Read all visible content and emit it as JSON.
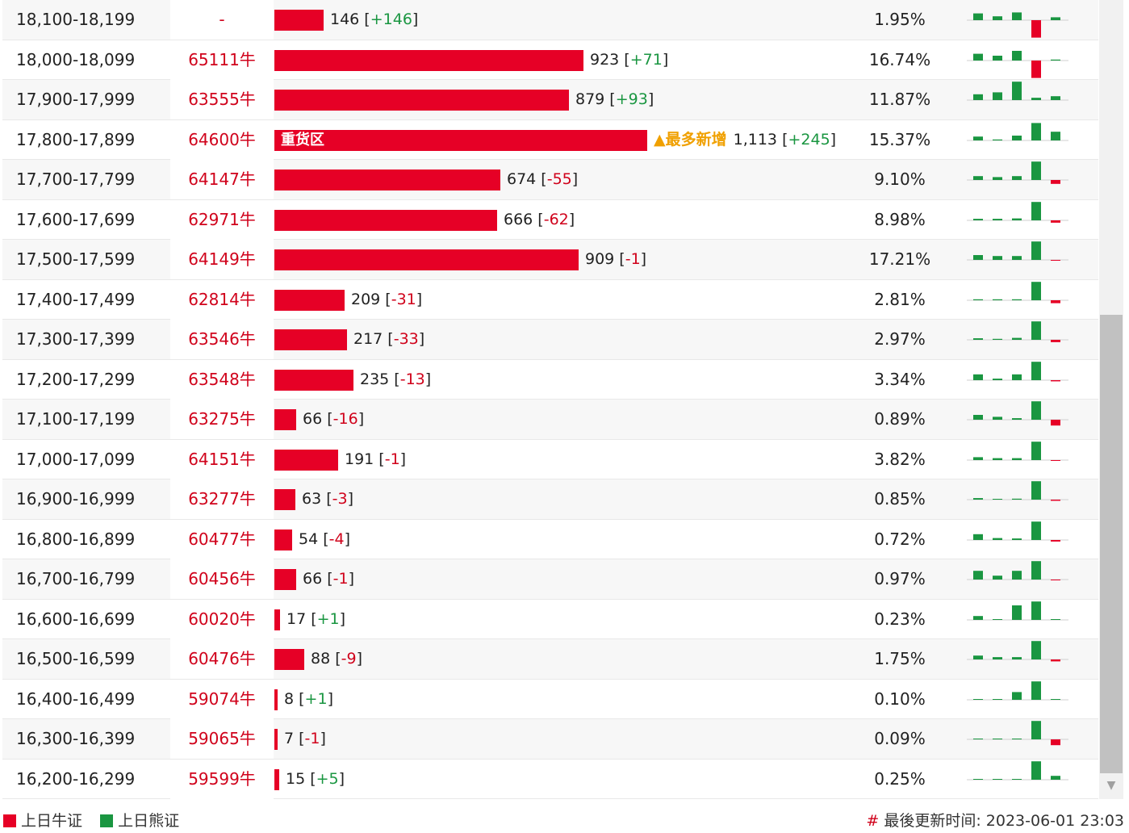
{
  "chart_data": {
    "type": "table",
    "columns": [
      "range",
      "strike_count",
      "bar",
      "percent",
      "sparkline"
    ],
    "rows": [
      {
        "range": "18,100-18,199",
        "strike": "-",
        "value": 146,
        "value_text": "146",
        "change": "+146",
        "percent": "1.95%",
        "bar_label": "",
        "tag": "",
        "spark": [
          {
            "g": 0.35
          },
          {
            "g": 0.2
          },
          {
            "g": 0.4
          },
          {
            "r": 0.9
          },
          {
            "g": 0.15
          }
        ]
      },
      {
        "range": "18,000-18,099",
        "strike": "65111牛",
        "value": 923,
        "value_text": "923",
        "change": "+71",
        "percent": "16.74%",
        "bar_label": "",
        "tag": "",
        "spark": [
          {
            "g": 0.35
          },
          {
            "g": 0.25
          },
          {
            "g": 0.5
          },
          {
            "r": 0.9
          },
          {
            "g": 0.05
          }
        ]
      },
      {
        "range": "17,900-17,999",
        "strike": "63555牛",
        "value": 879,
        "value_text": "879",
        "change": "+93",
        "percent": "11.87%",
        "bar_label": "",
        "tag": "",
        "spark": [
          {
            "g": 0.3
          },
          {
            "g": 0.4
          },
          {
            "g": 0.95
          },
          {
            "g": 0.12
          },
          {
            "g": 0.2
          }
        ]
      },
      {
        "range": "17,800-17,899",
        "strike": "64600牛",
        "value": 1113,
        "value_text": "1,113",
        "change": "+245",
        "percent": "15.37%",
        "bar_label": "重货区",
        "tag": "▲最多新增",
        "spark": [
          {
            "g": 0.2
          },
          {
            "g": 0.05
          },
          {
            "g": 0.25
          },
          {
            "g": 0.9
          },
          {
            "g": 0.45
          }
        ]
      },
      {
        "range": "17,700-17,799",
        "strike": "64147牛",
        "value": 674,
        "value_text": "674",
        "change": "-55",
        "percent": "9.10%",
        "bar_label": "",
        "tag": "",
        "spark": [
          {
            "g": 0.2
          },
          {
            "g": 0.15
          },
          {
            "g": 0.2
          },
          {
            "g": 0.95
          },
          {
            "r": 0.2
          }
        ]
      },
      {
        "range": "17,600-17,699",
        "strike": "62971牛",
        "value": 666,
        "value_text": "666",
        "change": "-62",
        "percent": "8.98%",
        "bar_label": "",
        "tag": "",
        "spark": [
          {
            "g": 0.08
          },
          {
            "g": 0.08
          },
          {
            "g": 0.1
          },
          {
            "g": 0.95
          },
          {
            "r": 0.12
          }
        ]
      },
      {
        "range": "17,500-17,599",
        "strike": "64149牛",
        "value": 909,
        "value_text": "909",
        "change": "-1",
        "percent": "17.21%",
        "bar_label": "",
        "tag": "",
        "spark": [
          {
            "g": 0.25
          },
          {
            "g": 0.2
          },
          {
            "g": 0.2
          },
          {
            "g": 0.95
          },
          {
            "r": 0.03
          }
        ]
      },
      {
        "range": "17,400-17,499",
        "strike": "62814牛",
        "value": 209,
        "value_text": "209",
        "change": "-31",
        "percent": "2.81%",
        "bar_label": "",
        "tag": "",
        "spark": [
          {
            "g": 0.05
          },
          {
            "g": 0.05
          },
          {
            "g": 0.05
          },
          {
            "g": 0.95
          },
          {
            "r": 0.15
          }
        ]
      },
      {
        "range": "17,300-17,399",
        "strike": "63546牛",
        "value": 217,
        "value_text": "217",
        "change": "-33",
        "percent": "2.97%",
        "bar_label": "",
        "tag": "",
        "spark": [
          {
            "g": 0.08
          },
          {
            "g": 0.05
          },
          {
            "g": 0.1
          },
          {
            "g": 0.95
          },
          {
            "r": 0.12
          }
        ]
      },
      {
        "range": "17,200-17,299",
        "strike": "63548牛",
        "value": 235,
        "value_text": "235",
        "change": "-13",
        "percent": "3.34%",
        "bar_label": "",
        "tag": "",
        "spark": [
          {
            "g": 0.3
          },
          {
            "g": 0.08
          },
          {
            "g": 0.3
          },
          {
            "g": 0.95
          },
          {
            "r": 0.06
          }
        ]
      },
      {
        "range": "17,100-17,199",
        "strike": "63275牛",
        "value": 66,
        "value_text": "66",
        "change": "-16",
        "percent": "0.89%",
        "bar_label": "",
        "tag": "",
        "spark": [
          {
            "g": 0.25
          },
          {
            "g": 0.15
          },
          {
            "g": 0.08
          },
          {
            "g": 0.95
          },
          {
            "r": 0.3
          }
        ]
      },
      {
        "range": "17,000-17,099",
        "strike": "64151牛",
        "value": 191,
        "value_text": "191",
        "change": "-1",
        "percent": "3.82%",
        "bar_label": "",
        "tag": "",
        "spark": [
          {
            "g": 0.15
          },
          {
            "g": 0.1
          },
          {
            "g": 0.1
          },
          {
            "g": 0.95
          },
          {
            "r": 0
          }
        ]
      },
      {
        "range": "16,900-16,999",
        "strike": "63277牛",
        "value": 63,
        "value_text": "63",
        "change": "-3",
        "percent": "0.85%",
        "bar_label": "",
        "tag": "",
        "spark": [
          {
            "g": 0.08
          },
          {
            "g": 0
          },
          {
            "g": 0.05
          },
          {
            "g": 0.95
          },
          {
            "r": 0.06
          }
        ]
      },
      {
        "range": "16,800-16,899",
        "strike": "60477牛",
        "value": 54,
        "value_text": "54",
        "change": "-4",
        "percent": "0.72%",
        "bar_label": "",
        "tag": "",
        "spark": [
          {
            "g": 0.3
          },
          {
            "g": 0.1
          },
          {
            "g": 0.08
          },
          {
            "g": 0.95
          },
          {
            "r": 0.08
          }
        ]
      },
      {
        "range": "16,700-16,799",
        "strike": "60456牛",
        "value": 66,
        "value_text": "66",
        "change": "-1",
        "percent": "0.97%",
        "bar_label": "",
        "tag": "",
        "spark": [
          {
            "g": 0.45
          },
          {
            "g": 0.2
          },
          {
            "g": 0.45
          },
          {
            "g": 0.95
          },
          {
            "r": 0
          }
        ]
      },
      {
        "range": "16,600-16,699",
        "strike": "60020牛",
        "value": 17,
        "value_text": "17",
        "change": "+1",
        "percent": "0.23%",
        "bar_label": "",
        "tag": "",
        "spark": [
          {
            "g": 0.2
          },
          {
            "g": 0
          },
          {
            "g": 0.75
          },
          {
            "g": 0.95
          },
          {
            "g": 0
          }
        ]
      },
      {
        "range": "16,500-16,599",
        "strike": "60476牛",
        "value": 88,
        "value_text": "88",
        "change": "-9",
        "percent": "1.75%",
        "bar_label": "",
        "tag": "",
        "spark": [
          {
            "g": 0.2
          },
          {
            "g": 0.12
          },
          {
            "g": 0.12
          },
          {
            "g": 0.95
          },
          {
            "r": 0.1
          }
        ]
      },
      {
        "range": "16,400-16,499",
        "strike": "59074牛",
        "value": 8,
        "value_text": "8",
        "change": "+1",
        "percent": "0.10%",
        "bar_label": "",
        "tag": "",
        "spark": [
          {
            "g": 0
          },
          {
            "g": 0
          },
          {
            "g": 0.4
          },
          {
            "g": 0.95
          },
          {
            "g": 0
          }
        ]
      },
      {
        "range": "16,300-16,399",
        "strike": "59065牛",
        "value": 7,
        "value_text": "7",
        "change": "-1",
        "percent": "0.09%",
        "bar_label": "",
        "tag": "",
        "spark": [
          {
            "g": 0
          },
          {
            "g": 0
          },
          {
            "g": 0
          },
          {
            "g": 0.95
          },
          {
            "r": 0.3
          }
        ]
      },
      {
        "range": "16,200-16,299",
        "strike": "59599牛",
        "value": 15,
        "value_text": "15",
        "change": "+5",
        "percent": "0.25%",
        "bar_label": "",
        "tag": "",
        "spark": [
          {
            "g": 0
          },
          {
            "g": 0
          },
          {
            "g": 0
          },
          {
            "g": 0.95
          },
          {
            "g": 0.2
          }
        ]
      }
    ],
    "colors": {
      "bull": "#e60026",
      "bear": "#1a9641",
      "tag": "#f0a000"
    }
  },
  "legend": {
    "bull": "上日牛证",
    "bear": "上日熊证"
  },
  "footer": {
    "hash": "#",
    "updated": "最後更新时间: 2023-06-01 23:03"
  }
}
